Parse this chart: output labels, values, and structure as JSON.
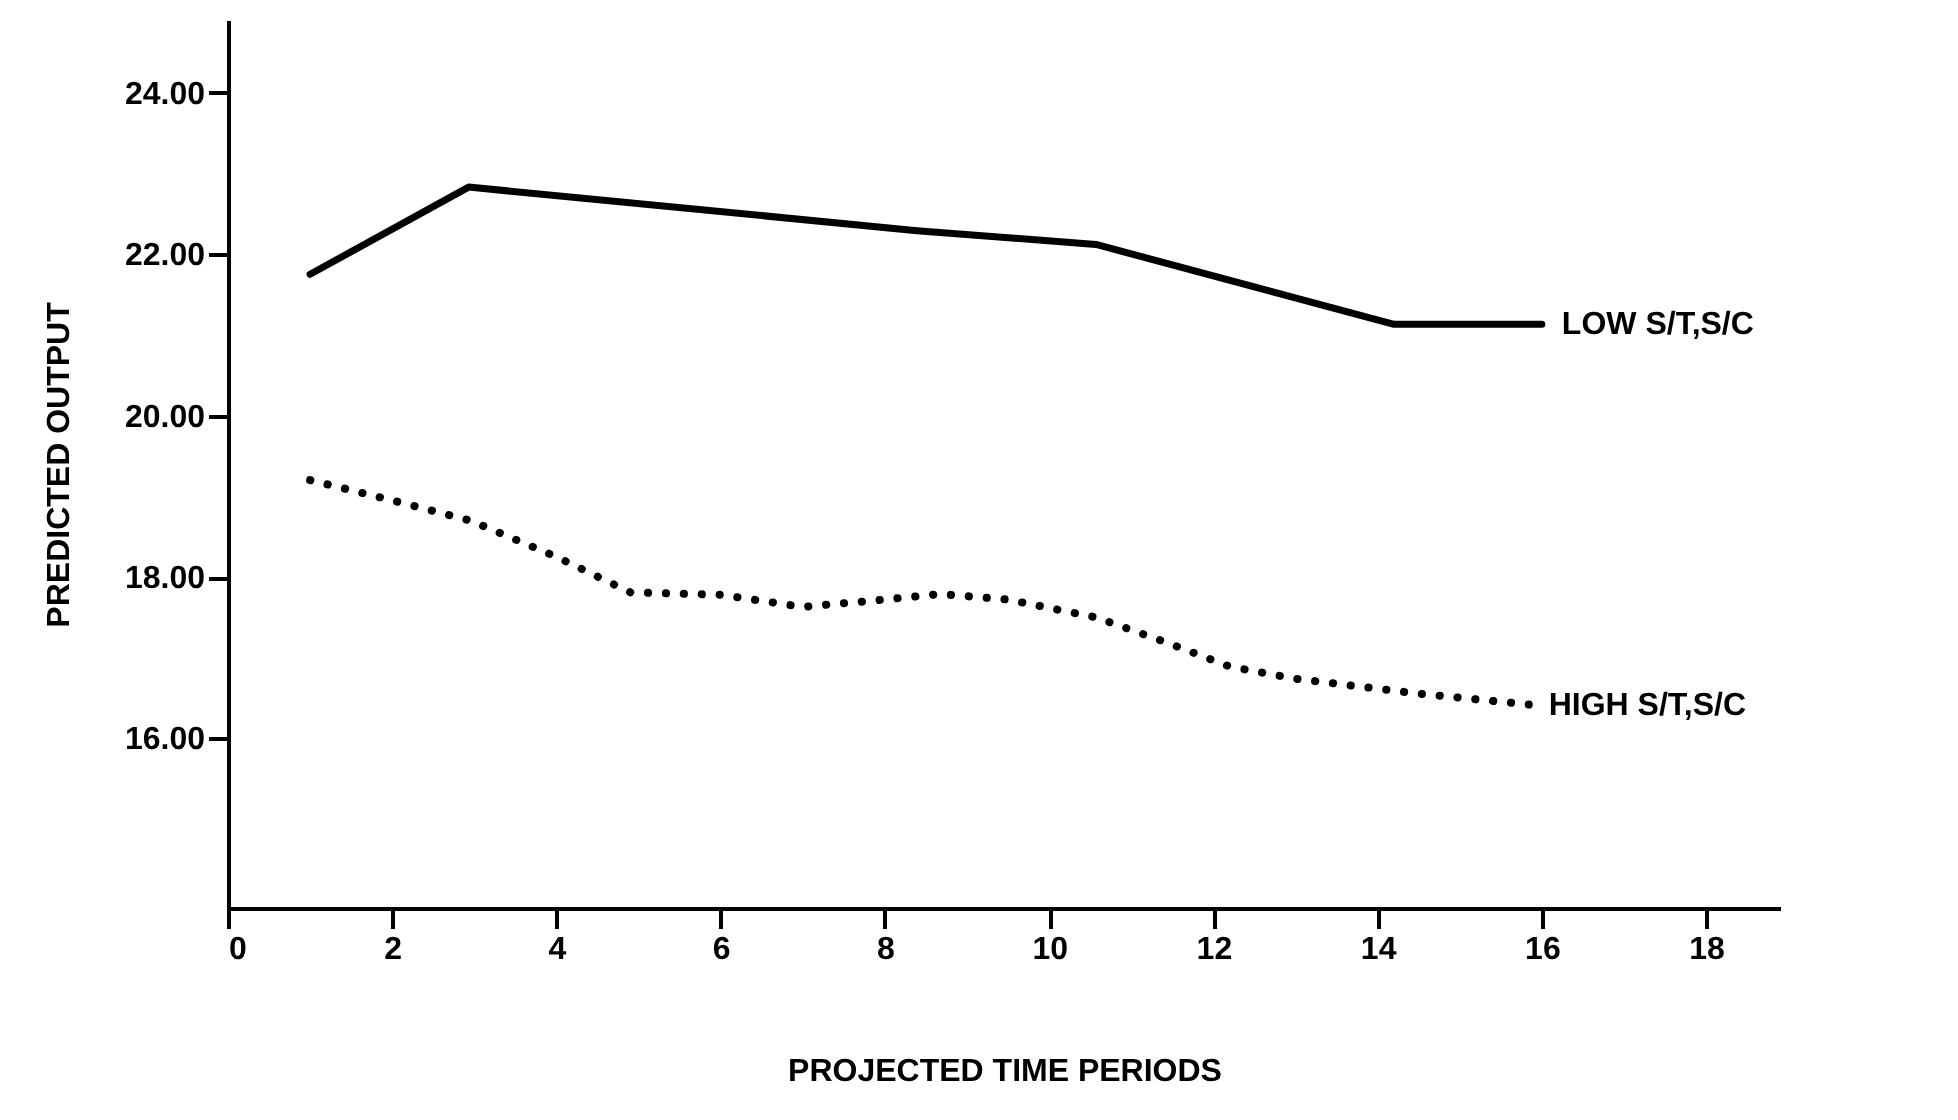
{
  "chart_data": {
    "type": "line",
    "xlabel": "PROJECTED TIME PERIODS",
    "ylabel": "PREDICTED OUTPUT",
    "xlim": [
      0,
      18.9
    ],
    "xticks": [
      0,
      2,
      4,
      6,
      8,
      10,
      12,
      14,
      16,
      18
    ],
    "ylim": [
      13.9,
      24.9
    ],
    "yticks": [
      {
        "value": 16,
        "label": "16.00"
      },
      {
        "value": 18,
        "label": "18.00"
      },
      {
        "value": 20,
        "label": "20.00"
      },
      {
        "value": 22,
        "label": "22.00"
      },
      {
        "value": 24,
        "label": "24.00"
      }
    ],
    "grid": false,
    "series": [
      {
        "name": "LOW S/T,S/C",
        "color": "#000000",
        "line_style": "solid",
        "x": [
          1.0,
          2.93,
          8.39,
          10.57,
          14.2,
          16.0
        ],
        "values": [
          21.75,
          22.83,
          22.29,
          22.12,
          21.13,
          21.13
        ]
      },
      {
        "name": "HIGH S/T,S/C",
        "color": "#000000",
        "line_style": "dotted",
        "x": [
          1.0,
          2.0,
          2.95,
          4.0,
          4.9,
          6.0,
          7.0,
          8.0,
          8.67,
          9.5,
          10.57,
          11.4,
          12.2,
          13.0,
          14.46,
          15.84
        ],
        "values": [
          19.2,
          18.95,
          18.7,
          18.25,
          17.81,
          17.78,
          17.63,
          17.72,
          17.79,
          17.72,
          17.5,
          17.2,
          16.89,
          16.74,
          16.56,
          16.42
        ]
      }
    ]
  }
}
